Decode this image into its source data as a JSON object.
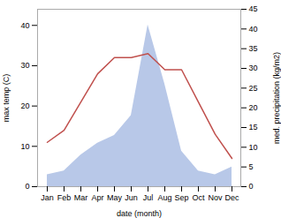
{
  "chart_data": {
    "type": "line",
    "categories": [
      "Jan",
      "Feb",
      "Mar",
      "Apr",
      "May",
      "Jun",
      "Jul",
      "Aug",
      "Sep",
      "Oct",
      "Nov",
      "Dec"
    ],
    "xlabel": "date (month)",
    "ylabel": "max temp (C)",
    "y2label": "med. precipitation (kg/m2)",
    "ylim": [
      0,
      44
    ],
    "yticks": [
      0,
      10,
      20,
      30,
      40
    ],
    "y2lim": [
      0,
      45
    ],
    "y2ticks": [
      0,
      5,
      10,
      15,
      20,
      25,
      30,
      35,
      40,
      45
    ],
    "series": [
      {
        "type": "area",
        "axis": "y2",
        "color": "#b8c8e8",
        "values": [
          3,
          4,
          8,
          11,
          13,
          18,
          41,
          26,
          9,
          4,
          3,
          5
        ]
      },
      {
        "type": "line",
        "color": "#c0504d",
        "values": [
          11,
          14,
          21,
          28,
          32,
          32,
          33,
          29,
          29,
          21,
          13,
          7
        ]
      }
    ]
  }
}
